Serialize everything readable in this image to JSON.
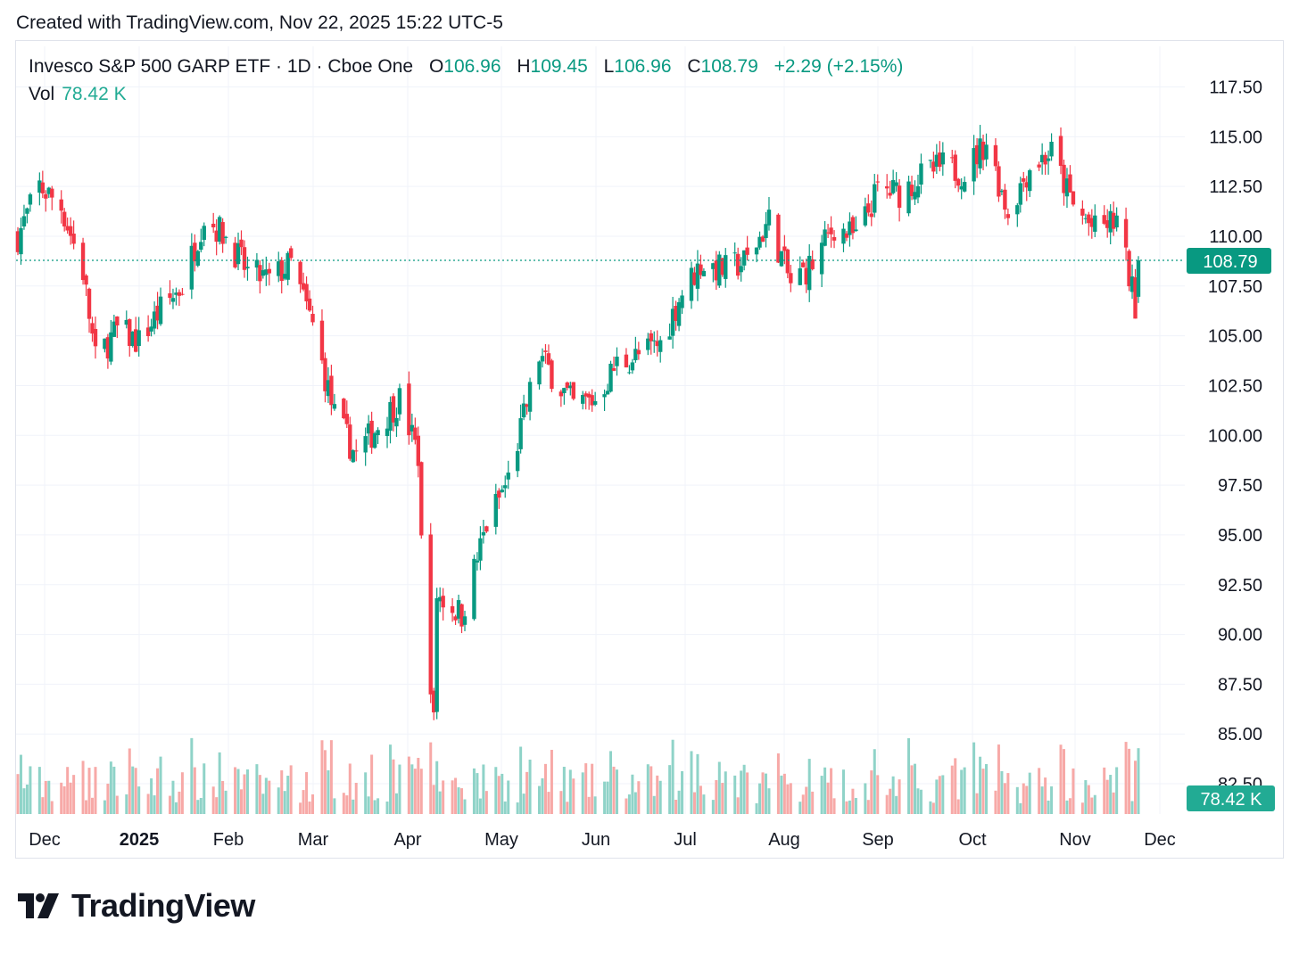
{
  "header": {
    "created": "Created with TradingView.com, Nov 22, 2025 15:22 UTC-5"
  },
  "legend": {
    "name": "Invesco S&P 500 GARP ETF · 1D · Cboe One",
    "open_label": "O",
    "open": "106.96",
    "high_label": "H",
    "high": "109.45",
    "low_label": "L",
    "low": "106.96",
    "close_label": "C",
    "close": "108.79",
    "change": "+2.29 (+2.15%)",
    "vol_label": "Vol",
    "vol": "78.42 K"
  },
  "logo": {
    "text": "TradingView"
  },
  "colors": {
    "up": "#089981",
    "down": "#f23645",
    "up_vol": "#8fd3c8",
    "down_vol": "#f7a9a7",
    "grid": "#f0f3fa",
    "axis_text": "#131722"
  },
  "chart_data": {
    "type": "candlestick",
    "y_ticks": [
      "117.50",
      "115.00",
      "112.50",
      "110.00",
      "107.50",
      "105.00",
      "102.50",
      "100.00",
      "97.50",
      "95.00",
      "92.50",
      "90.00",
      "87.50",
      "85.00",
      "82.50"
    ],
    "ylim": [
      82.5,
      117.5
    ],
    "x_ticks": [
      "Dec",
      "2025",
      "Feb",
      "Mar",
      "Apr",
      "May",
      "Jun",
      "Jul",
      "Aug",
      "Sep",
      "Oct",
      "Nov",
      "Dec"
    ],
    "last_price": "108.79",
    "last_volume": "78.42 K",
    "close_series": [
      {
        "date": "2024-11-25",
        "close": 110.0
      },
      {
        "date": "2024-12-02",
        "close": 112.5
      },
      {
        "date": "2024-12-09",
        "close": 111.5
      },
      {
        "date": "2024-12-16",
        "close": 108.2
      },
      {
        "date": "2024-12-20",
        "close": 103.8
      },
      {
        "date": "2024-12-27",
        "close": 105.3
      },
      {
        "date": "2025-01-03",
        "close": 104.7
      },
      {
        "date": "2025-01-10",
        "close": 106.3
      },
      {
        "date": "2025-01-17",
        "close": 107.5
      },
      {
        "date": "2025-01-24",
        "close": 111.0
      },
      {
        "date": "2025-01-31",
        "close": 110.0
      },
      {
        "date": "2025-02-07",
        "close": 108.2
      },
      {
        "date": "2025-02-14",
        "close": 107.8
      },
      {
        "date": "2025-02-21",
        "close": 108.6
      },
      {
        "date": "2025-02-28",
        "close": 105.5
      },
      {
        "date": "2025-03-07",
        "close": 101.0
      },
      {
        "date": "2025-03-14",
        "close": 99.0
      },
      {
        "date": "2025-03-21",
        "close": 100.5
      },
      {
        "date": "2025-03-28",
        "close": 101.8
      },
      {
        "date": "2025-04-03",
        "close": 99.0
      },
      {
        "date": "2025-04-04",
        "close": 94.5
      },
      {
        "date": "2025-04-08",
        "close": 85.5
      },
      {
        "date": "2025-04-09",
        "close": 92.0
      },
      {
        "date": "2025-04-17",
        "close": 91.0
      },
      {
        "date": "2025-04-25",
        "close": 95.5
      },
      {
        "date": "2025-05-02",
        "close": 97.8
      },
      {
        "date": "2025-05-12",
        "close": 104.0
      },
      {
        "date": "2025-05-23",
        "close": 101.5
      },
      {
        "date": "2025-05-30",
        "close": 101.8
      },
      {
        "date": "2025-06-06",
        "close": 103.6
      },
      {
        "date": "2025-06-13",
        "close": 104.0
      },
      {
        "date": "2025-06-20",
        "close": 104.6
      },
      {
        "date": "2025-06-27",
        "close": 107.2
      },
      {
        "date": "2025-07-03",
        "close": 108.6
      },
      {
        "date": "2025-07-11",
        "close": 108.3
      },
      {
        "date": "2025-07-18",
        "close": 108.8
      },
      {
        "date": "2025-07-25",
        "close": 110.8
      },
      {
        "date": "2025-08-01",
        "close": 107.6
      },
      {
        "date": "2025-08-08",
        "close": 108.6
      },
      {
        "date": "2025-08-15",
        "close": 110.5
      },
      {
        "date": "2025-08-22",
        "close": 109.9
      },
      {
        "date": "2025-08-29",
        "close": 112.3
      },
      {
        "date": "2025-09-05",
        "close": 112.2
      },
      {
        "date": "2025-09-12",
        "close": 113.0
      },
      {
        "date": "2025-09-19",
        "close": 113.5
      },
      {
        "date": "2025-09-26",
        "close": 113.2
      },
      {
        "date": "2025-10-03",
        "close": 114.8
      },
      {
        "date": "2025-10-10",
        "close": 111.2
      },
      {
        "date": "2025-10-17",
        "close": 113.5
      },
      {
        "date": "2025-10-24",
        "close": 114.2
      },
      {
        "date": "2025-10-31",
        "close": 111.5
      },
      {
        "date": "2025-11-07",
        "close": 110.3
      },
      {
        "date": "2025-11-14",
        "close": 110.8
      },
      {
        "date": "2025-11-20",
        "close": 106.6
      },
      {
        "date": "2025-11-21",
        "close": 108.79
      }
    ]
  }
}
